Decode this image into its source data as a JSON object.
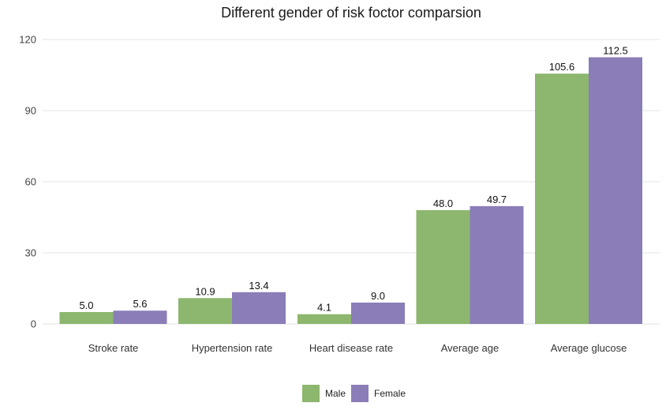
{
  "chart_data": {
    "type": "bar",
    "title": "Different gender of risk foctor comparsion",
    "xlabel": "",
    "ylabel": "",
    "categories": [
      "Stroke rate",
      "Hypertension rate",
      "Heart disease rate",
      "Average age",
      "Average glucose"
    ],
    "series": [
      {
        "name": "Male",
        "color": "#8db66f",
        "values": [
          5.0,
          10.9,
          4.1,
          48.0,
          105.6
        ],
        "labels": [
          "5.0",
          "10.9",
          "4.1",
          "48.0",
          "105.6"
        ]
      },
      {
        "name": "Female",
        "color": "#8a7db8",
        "values": [
          5.6,
          13.4,
          9.0,
          49.7,
          112.5
        ],
        "labels": [
          "5.6",
          "13.4",
          "9.0",
          "49.7",
          "112.5"
        ]
      }
    ],
    "ylim": [
      0,
      120
    ],
    "yticks": [
      0,
      30,
      60,
      90,
      120
    ],
    "ytick_labels": [
      "0",
      "30",
      "60",
      "90",
      "120"
    ],
    "grid": true,
    "legend_position": "bottom"
  }
}
